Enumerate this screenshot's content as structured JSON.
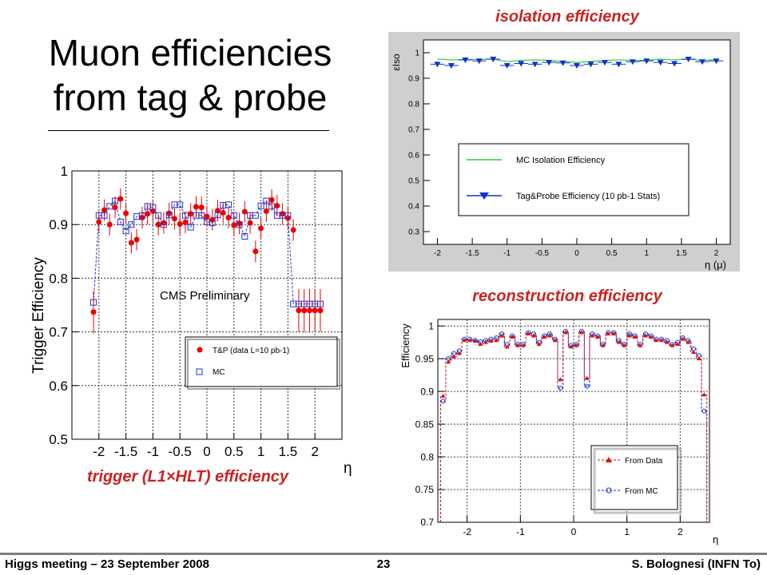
{
  "slide": {
    "title_line1": "Muon efficiencies",
    "title_line2": "from tag & probe",
    "footer_left": "Higgs meeting – 23 September 2008",
    "page_number": "23",
    "footer_right": "S. Bolognesi (INFN To)"
  },
  "captions": {
    "isolation": "isolation efficiency",
    "reconstruction": "reconstruction efficiency",
    "trigger": "trigger (L1×HLT) efficiency"
  },
  "chart_data": [
    {
      "id": "trigger",
      "type": "scatter",
      "title": "",
      "annotation": "CMS Preliminary",
      "xlabel": "η",
      "ylabel": "Trigger Efficiency",
      "xlim": [
        -2.5,
        2.5
      ],
      "ylim": [
        0.5,
        1.0
      ],
      "xticks": [
        "-2",
        "-1.5",
        "-1",
        "-0.5",
        "0",
        "0.5",
        "1",
        "1.5",
        "2"
      ],
      "xtick_values": [
        -2,
        -1.5,
        -1,
        -0.5,
        0,
        0.5,
        1,
        1.5,
        2
      ],
      "yticks": [
        "0.5",
        "0.6",
        "0.7",
        "0.8",
        "0.9",
        "1"
      ],
      "ytick_values": [
        0.5,
        0.6,
        0.7,
        0.8,
        0.9,
        1.0
      ],
      "grid": true,
      "legend_position": "lower-right",
      "x": [
        -2.1,
        -2.0,
        -1.9,
        -1.8,
        -1.7,
        -1.6,
        -1.5,
        -1.4,
        -1.3,
        -1.2,
        -1.1,
        -1.0,
        -0.9,
        -0.8,
        -0.7,
        -0.6,
        -0.5,
        -0.4,
        -0.3,
        -0.2,
        -0.1,
        0.0,
        0.1,
        0.2,
        0.3,
        0.4,
        0.5,
        0.6,
        0.7,
        0.8,
        0.9,
        1.0,
        1.1,
        1.2,
        1.3,
        1.4,
        1.5,
        1.6,
        1.7,
        1.8,
        1.9,
        2.0,
        2.1
      ],
      "series": [
        {
          "name": "T&P (data L=10 pb-1)",
          "marker": "filled-circle",
          "color": "#ee0000",
          "values": [
            0.737,
            0.905,
            0.927,
            0.9,
            0.932,
            0.948,
            0.921,
            0.866,
            0.872,
            0.913,
            0.92,
            0.925,
            0.9,
            0.903,
            0.921,
            0.911,
            0.901,
            0.904,
            0.92,
            0.933,
            0.932,
            0.915,
            0.909,
            0.926,
            0.922,
            0.913,
            0.899,
            0.902,
            0.924,
            0.903,
            0.85,
            0.893,
            0.925,
            0.946,
            0.935,
            0.92,
            0.912,
            0.89,
            0.74,
            0.74,
            0.74,
            0.74,
            0.74
          ],
          "errors": [
            0.04,
            0.02,
            0.02,
            0.02,
            0.02,
            0.02,
            0.02,
            0.02,
            0.02,
            0.02,
            0.02,
            0.02,
            0.02,
            0.02,
            0.02,
            0.02,
            0.02,
            0.02,
            0.02,
            0.02,
            0.02,
            0.02,
            0.02,
            0.02,
            0.02,
            0.02,
            0.02,
            0.02,
            0.02,
            0.02,
            0.02,
            0.02,
            0.02,
            0.02,
            0.02,
            0.02,
            0.02,
            0.02,
            0.04,
            0.04,
            0.04,
            0.04,
            0.04
          ]
        },
        {
          "name": "MC",
          "marker": "open-square",
          "color": "#2233cc",
          "values": [
            0.755,
            0.917,
            0.917,
            0.934,
            0.944,
            0.905,
            0.888,
            0.9,
            0.915,
            0.917,
            0.934,
            0.932,
            0.917,
            0.9,
            0.918,
            0.937,
            0.937,
            0.917,
            0.895,
            0.917,
            0.917,
            0.905,
            0.903,
            0.918,
            0.936,
            0.937,
            0.917,
            0.9,
            0.878,
            0.917,
            0.917,
            0.935,
            0.944,
            0.934,
            0.917,
            0.917,
            0.917,
            0.752,
            0.752,
            0.752,
            0.752,
            0.752,
            0.752
          ]
        }
      ]
    },
    {
      "id": "isolation",
      "type": "scatter",
      "title": "",
      "xlabel": "η (μ)",
      "ylabel": "εIso",
      "xlim": [
        -2.2,
        2.2
      ],
      "ylim": [
        0.25,
        1.05
      ],
      "xticks": [
        "-2",
        "-1.5",
        "-1",
        "-0.5",
        "0",
        "0.5",
        "1",
        "1.5",
        "2"
      ],
      "xtick_values": [
        -2,
        -1.5,
        -1,
        -0.5,
        0,
        0.5,
        1,
        1.5,
        2
      ],
      "yticks": [
        "0.3",
        "0.4",
        "0.5",
        "0.6",
        "0.7",
        "0.8",
        "0.9",
        "1"
      ],
      "ytick_values": [
        0.3,
        0.4,
        0.5,
        0.6,
        0.7,
        0.8,
        0.9,
        1.0
      ],
      "grid": false,
      "legend_position": "lower-right",
      "x": [
        -2.0,
        -1.8,
        -1.6,
        -1.4,
        -1.2,
        -1.0,
        -0.8,
        -0.6,
        -0.4,
        -0.2,
        0.0,
        0.2,
        0.4,
        0.6,
        0.8,
        1.0,
        1.2,
        1.4,
        1.6,
        1.8,
        2.0
      ],
      "series": [
        {
          "name": "MC Isolation Efficiency",
          "marker": "line",
          "color": "#33cc33",
          "values": [
            0.975,
            0.972,
            0.973,
            0.974,
            0.975,
            0.965,
            0.97,
            0.972,
            0.97,
            0.966,
            0.962,
            0.966,
            0.97,
            0.972,
            0.97,
            0.97,
            0.975,
            0.972,
            0.975,
            0.97,
            0.973
          ]
        },
        {
          "name": "Tag&Probe Efficiency (10 pb-1 Stats)",
          "marker": "filled-triangle-down",
          "color": "#1133cc",
          "values": [
            0.955,
            0.95,
            0.972,
            0.968,
            0.975,
            0.95,
            0.958,
            0.955,
            0.962,
            0.96,
            0.95,
            0.955,
            0.962,
            0.955,
            0.965,
            0.968,
            0.962,
            0.958,
            0.975,
            0.965,
            0.968
          ]
        }
      ]
    },
    {
      "id": "reconstruction",
      "type": "scatter",
      "title": "",
      "xlabel": "η",
      "ylabel": "Efficiency",
      "xlim": [
        -2.55,
        2.55
      ],
      "ylim": [
        0.7,
        1.01
      ],
      "xticks": [
        "-2",
        "-1",
        "0",
        "1",
        "2"
      ],
      "xtick_values": [
        -2,
        -1,
        0,
        1,
        2
      ],
      "yticks": [
        "0.7",
        "0.75",
        "0.8",
        "0.85",
        "0.9",
        "0.95",
        "1"
      ],
      "ytick_values": [
        0.7,
        0.75,
        0.8,
        0.85,
        0.9,
        0.95,
        1.0
      ],
      "grid": true,
      "legend_position": "lower-right",
      "x": [
        -2.45,
        -2.35,
        -2.25,
        -2.15,
        -2.05,
        -1.95,
        -1.85,
        -1.75,
        -1.65,
        -1.55,
        -1.45,
        -1.35,
        -1.25,
        -1.15,
        -1.05,
        -0.95,
        -0.85,
        -0.75,
        -0.65,
        -0.55,
        -0.45,
        -0.35,
        -0.25,
        -0.15,
        -0.05,
        0.05,
        0.15,
        0.25,
        0.35,
        0.45,
        0.55,
        0.65,
        0.75,
        0.85,
        0.95,
        1.05,
        1.15,
        1.25,
        1.35,
        1.45,
        1.55,
        1.65,
        1.75,
        1.85,
        1.95,
        2.05,
        2.15,
        2.25,
        2.35,
        2.45
      ],
      "series": [
        {
          "name": "From Data",
          "marker": "filled-triangle-up",
          "color": "#dd1111",
          "values": [
            0.893,
            0.945,
            0.953,
            0.958,
            0.978,
            0.978,
            0.977,
            0.972,
            0.975,
            0.977,
            0.978,
            0.985,
            0.968,
            0.983,
            0.97,
            0.97,
            0.988,
            0.985,
            0.972,
            0.983,
            0.985,
            0.978,
            0.918,
            0.99,
            0.968,
            0.97,
            0.99,
            0.92,
            0.985,
            0.983,
            0.97,
            0.988,
            0.988,
            0.975,
            0.97,
            0.985,
            0.983,
            0.97,
            0.985,
            0.983,
            0.978,
            0.978,
            0.975,
            0.97,
            0.972,
            0.98,
            0.975,
            0.96,
            0.95,
            0.895
          ]
        },
        {
          "name": "From MC",
          "marker": "open-circle",
          "color": "#1133cc",
          "values": [
            0.885,
            0.95,
            0.958,
            0.962,
            0.98,
            0.98,
            0.978,
            0.976,
            0.978,
            0.98,
            0.982,
            0.988,
            0.972,
            0.985,
            0.972,
            0.972,
            0.99,
            0.988,
            0.975,
            0.985,
            0.988,
            0.98,
            0.905,
            0.992,
            0.97,
            0.972,
            0.992,
            0.908,
            0.988,
            0.985,
            0.972,
            0.99,
            0.99,
            0.978,
            0.972,
            0.988,
            0.985,
            0.972,
            0.988,
            0.985,
            0.98,
            0.98,
            0.978,
            0.972,
            0.975,
            0.982,
            0.978,
            0.965,
            0.955,
            0.87
          ]
        }
      ]
    }
  ]
}
